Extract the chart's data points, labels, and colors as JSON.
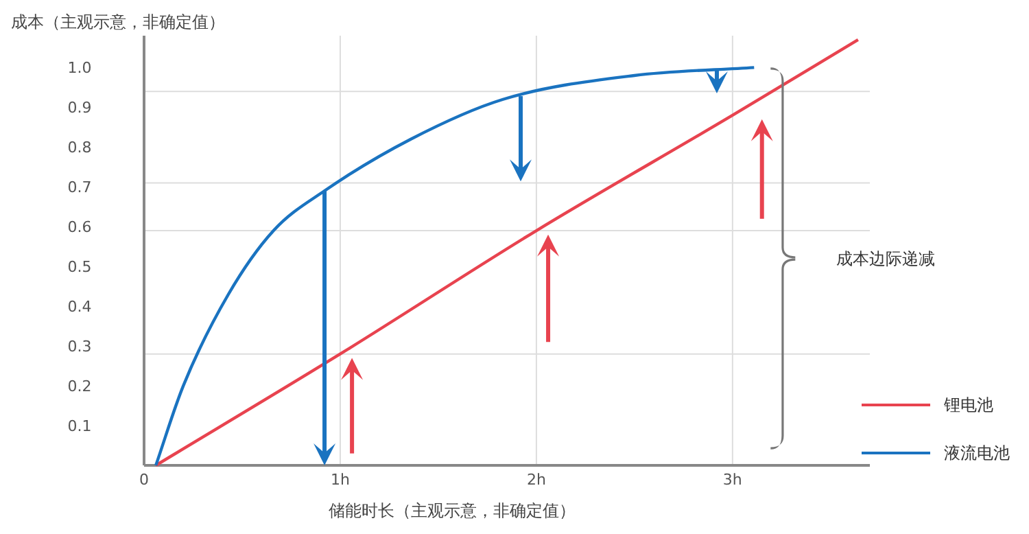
{
  "chart_data": {
    "type": "line",
    "ylabel": "成本（主观示意，非确定值）",
    "xlabel": "储能时长（主观示意，非确定值）",
    "series": [
      {
        "name": "锂电池",
        "color": "#e8434f",
        "x": [
          0.06,
          1,
          2,
          3,
          3.64
        ],
        "values": [
          0,
          0.28,
          0.59,
          0.88,
          1.07
        ]
      },
      {
        "name": "液流电池",
        "color": "#1a73c0",
        "x": [
          0.06,
          0.2,
          0.43,
          0.66,
          0.92,
          1.36,
          1.83,
          2.5,
          3.11
        ],
        "values": [
          0,
          0.2,
          0.43,
          0.59,
          0.69,
          0.82,
          0.92,
          0.98,
          1.0
        ]
      }
    ],
    "xlim": [
      0,
      3.7
    ],
    "ylim": [
      0,
      1.08
    ],
    "xticks": [
      {
        "value": 0,
        "label": "0"
      },
      {
        "value": 1,
        "label": "1h"
      },
      {
        "value": 2,
        "label": "2h"
      },
      {
        "value": 3,
        "label": "3h"
      }
    ],
    "yticks": [
      0.1,
      0.2,
      0.3,
      0.4,
      0.5,
      0.6,
      0.7,
      0.8,
      0.9,
      {
        "value": 1,
        "label": "1.0"
      }
    ],
    "grid": "x",
    "ref_lines": [
      {
        "axis": "y",
        "value": 0.28,
        "color": "#dddddd"
      },
      {
        "axis": "y",
        "value": 0.59,
        "color": "#dddddd"
      },
      {
        "axis": "y",
        "value": 0.71,
        "color": "#dddddd"
      },
      {
        "axis": "y",
        "value": 0.94,
        "color": "#dddddd"
      }
    ],
    "annotations": [
      "成本边际递减"
    ],
    "legend": "bottom right",
    "line_style": "solid",
    "marker": "none"
  }
}
